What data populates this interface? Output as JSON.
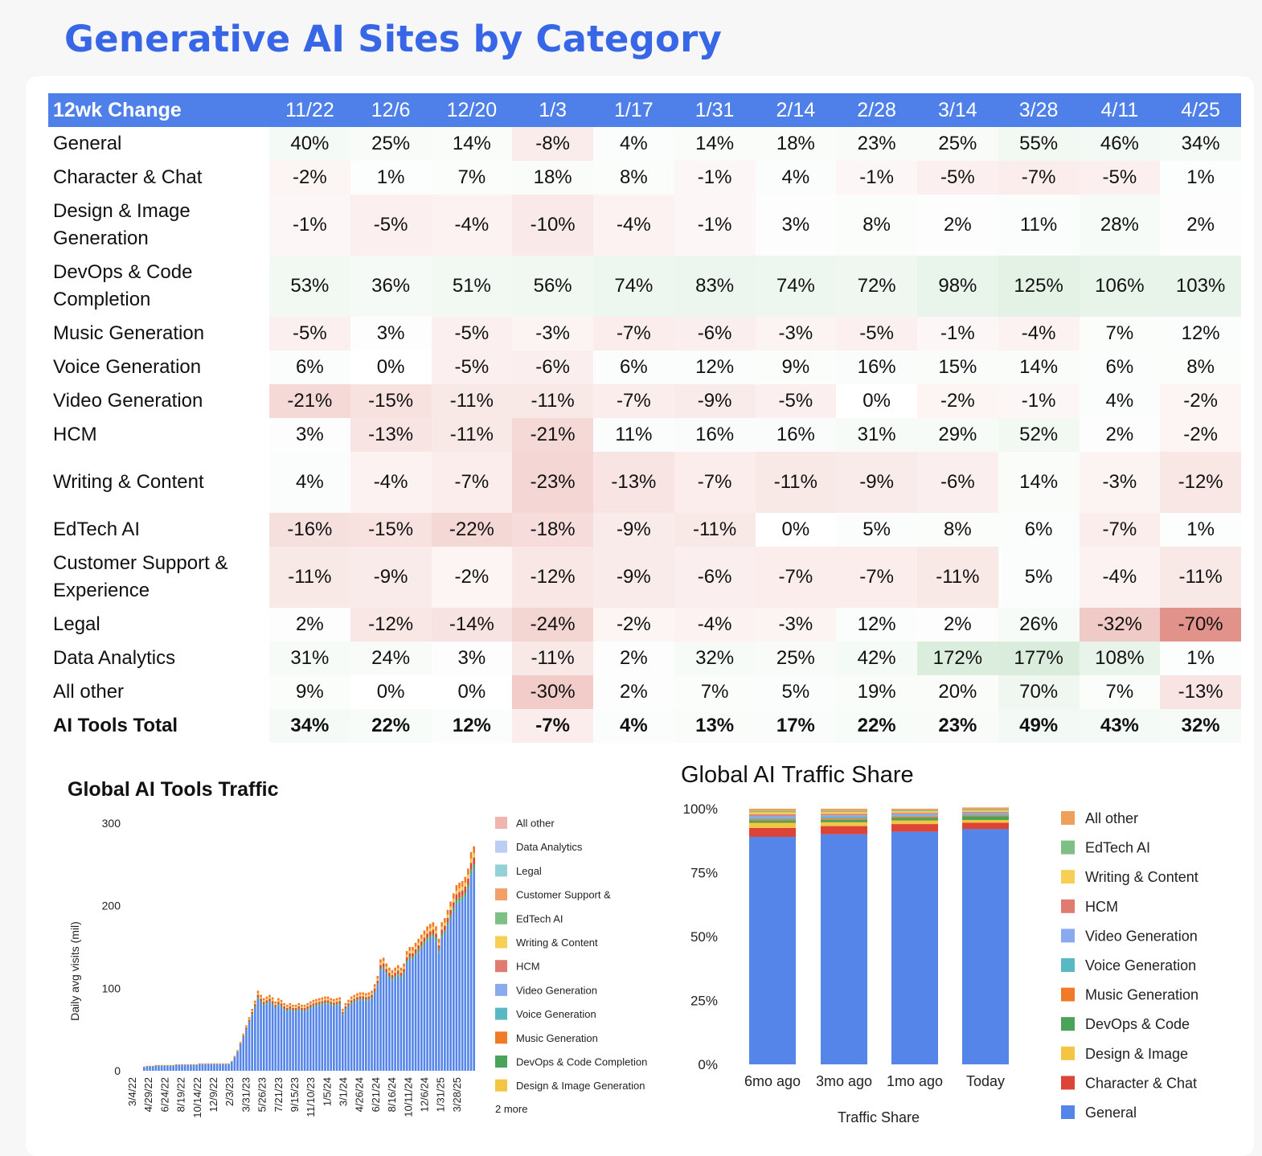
{
  "title": "Generative AI Sites by Category",
  "table": {
    "corner": "12wk Change",
    "columns": [
      "11/22",
      "12/6",
      "12/20",
      "1/3",
      "1/17",
      "1/31",
      "2/14",
      "2/28",
      "3/14",
      "3/28",
      "4/11",
      "4/25"
    ],
    "rows": [
      {
        "label": "General",
        "values": [
          "40%",
          "25%",
          "14%",
          "-8%",
          "4%",
          "14%",
          "18%",
          "23%",
          "25%",
          "55%",
          "46%",
          "34%"
        ]
      },
      {
        "label": "Character & Chat",
        "values": [
          "-2%",
          "1%",
          "7%",
          "18%",
          "8%",
          "-1%",
          "4%",
          "-1%",
          "-5%",
          "-7%",
          "-5%",
          "1%"
        ]
      },
      {
        "label": "Design & Image Generation",
        "values": [
          "-1%",
          "-5%",
          "-4%",
          "-10%",
          "-4%",
          "-1%",
          "3%",
          "8%",
          "2%",
          "11%",
          "28%",
          "2%"
        ]
      },
      {
        "label": "DevOps & Code Completion",
        "values": [
          "53%",
          "36%",
          "51%",
          "56%",
          "74%",
          "83%",
          "74%",
          "72%",
          "98%",
          "125%",
          "106%",
          "103%"
        ]
      },
      {
        "label": "Music Generation",
        "values": [
          "-5%",
          "3%",
          "-5%",
          "-3%",
          "-7%",
          "-6%",
          "-3%",
          "-5%",
          "-1%",
          "-4%",
          "7%",
          "12%"
        ]
      },
      {
        "label": "Voice Generation",
        "values": [
          "6%",
          "0%",
          "-5%",
          "-6%",
          "6%",
          "12%",
          "9%",
          "16%",
          "15%",
          "14%",
          "6%",
          "8%"
        ]
      },
      {
        "label": "Video Generation",
        "values": [
          "-21%",
          "-15%",
          "-11%",
          "-11%",
          "-7%",
          "-9%",
          "-5%",
          "0%",
          "-2%",
          "-1%",
          "4%",
          "-2%"
        ]
      },
      {
        "label": "HCM",
        "values": [
          "3%",
          "-13%",
          "-11%",
          "-21%",
          "11%",
          "16%",
          "16%",
          "31%",
          "29%",
          "52%",
          "2%",
          "-2%"
        ]
      },
      {
        "label": "Writing & Content",
        "values": [
          "4%",
          "-4%",
          "-7%",
          "-23%",
          "-13%",
          "-7%",
          "-11%",
          "-9%",
          "-6%",
          "14%",
          "-3%",
          "-12%"
        ]
      },
      {
        "label": "EdTech AI",
        "values": [
          "-16%",
          "-15%",
          "-22%",
          "-18%",
          "-9%",
          "-11%",
          "0%",
          "5%",
          "8%",
          "6%",
          "-7%",
          "1%"
        ]
      },
      {
        "label": "Customer Support & Experience",
        "values": [
          "-11%",
          "-9%",
          "-2%",
          "-12%",
          "-9%",
          "-6%",
          "-7%",
          "-7%",
          "-11%",
          "5%",
          "-4%",
          "-11%"
        ]
      },
      {
        "label": "Legal",
        "values": [
          "2%",
          "-12%",
          "-14%",
          "-24%",
          "-2%",
          "-4%",
          "-3%",
          "12%",
          "2%",
          "26%",
          "-32%",
          "-70%"
        ]
      },
      {
        "label": "Data Analytics",
        "values": [
          "31%",
          "24%",
          "3%",
          "-11%",
          "2%",
          "32%",
          "25%",
          "42%",
          "172%",
          "177%",
          "108%",
          "1%"
        ]
      },
      {
        "label": "All other",
        "values": [
          "9%",
          "0%",
          "0%",
          "-30%",
          "2%",
          "7%",
          "5%",
          "19%",
          "20%",
          "70%",
          "7%",
          "-13%"
        ]
      },
      {
        "label": "AI Tools Total",
        "values": [
          "34%",
          "22%",
          "12%",
          "-7%",
          "4%",
          "13%",
          "17%",
          "22%",
          "23%",
          "49%",
          "43%",
          "32%"
        ]
      }
    ]
  },
  "chart_data": [
    {
      "type": "bar",
      "stacked": true,
      "title": "Global AI Tools Traffic",
      "ylabel": "Daily avg visits (mil)",
      "ylim": [
        0,
        300
      ],
      "yticks": [
        0,
        100,
        200,
        300
      ],
      "x_tick_labels": [
        "3/4/22",
        "4/29/22",
        "6/24/22",
        "8/19/22",
        "10/14/22",
        "12/9/22",
        "2/3/23",
        "3/31/23",
        "5/26/23",
        "7/21/23",
        "9/15/23",
        "11/10/23",
        "1/5/24",
        "3/1/24",
        "4/26/24",
        "6/21/24",
        "8/16/24",
        "10/11/24",
        "12/6/24",
        "1/31/25",
        "3/28/25"
      ],
      "total_series": {
        "name": "Total",
        "values": [
          5,
          6,
          6,
          6,
          7,
          7,
          7,
          7,
          7,
          7,
          7,
          8,
          8,
          8,
          8,
          8,
          8,
          8,
          8,
          9,
          9,
          9,
          9,
          9,
          9,
          9,
          9,
          9,
          9,
          9,
          12,
          18,
          25,
          35,
          45,
          55,
          65,
          75,
          85,
          97,
          92,
          88,
          90,
          92,
          89,
          84,
          88,
          86,
          82,
          80,
          82,
          80,
          80,
          82,
          80,
          80,
          82,
          84,
          86,
          87,
          88,
          89,
          90,
          90,
          88,
          87,
          88,
          89,
          75,
          82,
          86,
          90,
          92,
          94,
          95,
          95,
          94,
          95,
          97,
          105,
          115,
          135,
          137,
          130,
          125,
          122,
          125,
          128,
          125,
          130,
          145,
          150,
          150,
          155,
          160,
          165,
          170,
          175,
          178,
          180,
          175,
          160,
          180,
          185,
          195,
          205,
          215,
          225,
          228,
          230,
          235,
          245,
          265,
          272
        ],
        "composition": {
          "General": 0.9,
          "DevOps & Code Completion": 0.02,
          "Character & Chat": 0.03,
          "Design & Image Generation": 0.02,
          "Other categories": 0.03
        }
      },
      "legend": [
        "All other",
        "Data Analytics",
        "Legal",
        "Customer Support &",
        "EdTech AI",
        "Writing & Content",
        "HCM",
        "Video Generation",
        "Voice Generation",
        "Music Generation",
        "DevOps & Code Completion",
        "Design & Image Generation"
      ],
      "legend_more": "2 more"
    },
    {
      "type": "bar",
      "stacked": true,
      "percent": true,
      "title": "Global AI Traffic Share",
      "xlabel": "Traffic Share",
      "categories": [
        "6mo ago",
        "3mo ago",
        "1mo ago",
        "Today"
      ],
      "yticks": [
        "0%",
        "25%",
        "50%",
        "75%",
        "100%"
      ],
      "series": [
        {
          "name": "General",
          "values": [
            89.0,
            90.0,
            91.0,
            92.0
          ]
        },
        {
          "name": "Character & Chat",
          "values": [
            3.5,
            3.2,
            3.0,
            2.5
          ]
        },
        {
          "name": "Design & Image",
          "values": [
            2.0,
            1.5,
            1.4,
            1.1
          ]
        },
        {
          "name": "DevOps & Code",
          "values": [
            0.9,
            1.0,
            1.0,
            1.4
          ]
        },
        {
          "name": "Music Generation",
          "values": [
            0.5,
            0.5,
            0.5,
            0.4
          ]
        },
        {
          "name": "Voice Generation",
          "values": [
            0.5,
            0.5,
            0.4,
            0.4
          ]
        },
        {
          "name": "Video Generation",
          "values": [
            0.8,
            0.7,
            0.6,
            0.5
          ]
        },
        {
          "name": "HCM",
          "values": [
            0.6,
            0.6,
            0.5,
            0.5
          ]
        },
        {
          "name": "Writing & Content",
          "values": [
            0.8,
            0.7,
            0.6,
            0.5
          ]
        },
        {
          "name": "EdTech AI",
          "values": [
            0.5,
            0.4,
            0.4,
            0.4
          ]
        },
        {
          "name": "All other",
          "values": [
            0.9,
            0.9,
            0.6,
            0.8
          ]
        }
      ],
      "legend": [
        "All other",
        "EdTech AI",
        "Writing & Content",
        "HCM",
        "Video Generation",
        "Voice Generation",
        "Music Generation",
        "DevOps & Code",
        "Design & Image",
        "Character & Chat",
        "General"
      ]
    }
  ],
  "colors": {
    "accent": "#3766e6",
    "header": "#4f80ea",
    "General": "#5585e8",
    "Character & Chat": "#db4437",
    "Design & Image": "#f4c542",
    "DevOps & Code": "#4aa35a",
    "Music Generation": "#f07a28",
    "Voice Generation": "#5ab8c4",
    "Video Generation": "#8aaaf0",
    "HCM": "#e07b72",
    "Writing & Content": "#f7cf55",
    "EdTech AI": "#7dbf85",
    "All other": "#eea05a",
    "Data Analytics": "#bccdf5",
    "Legal": "#93d0d8",
    "Customer Support &": "#f1a06a",
    "All other left": "#f1b5b0"
  }
}
